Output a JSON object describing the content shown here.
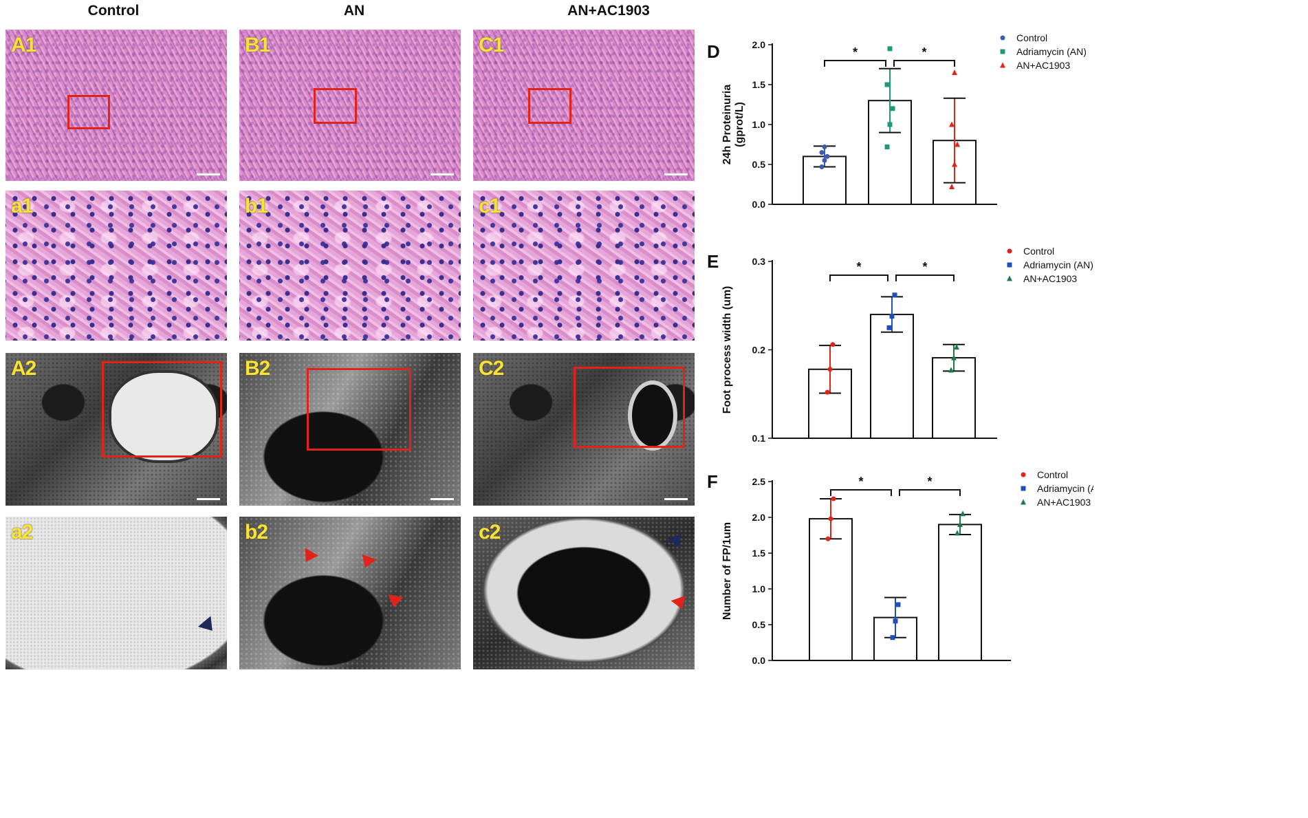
{
  "column_headers": [
    "Control",
    "AN",
    "AN+AC1903"
  ],
  "panel_labels": {
    "row1": [
      "A1",
      "B1",
      "C1"
    ],
    "row2": [
      "a1",
      "b1",
      "c1"
    ],
    "row3": [
      "A2",
      "B2",
      "C2"
    ],
    "row4": [
      "a2",
      "b2",
      "c2"
    ]
  },
  "colors": {
    "roi_box": "#e2231a",
    "panel_label": "#f6e23a",
    "arrow_red": "#e2231a",
    "arrow_navy": "#1f2a5c"
  },
  "chart_data": [
    {
      "panel": "D",
      "type": "bar",
      "categories": [
        "Control",
        "Adriamycin (AN)",
        "AN+AC1903"
      ],
      "ylabel": "24h  Proteinuria\n(gprot/L)",
      "ylim": [
        0,
        2.0
      ],
      "yticks": [
        "0.0",
        "0.5",
        "1.0",
        "1.5",
        "2.0"
      ],
      "means": [
        0.6,
        1.3,
        0.8
      ],
      "sd": [
        0.13,
        0.4,
        0.53
      ],
      "points": [
        [
          0.47,
          0.55,
          0.6,
          0.65,
          0.72
        ],
        [
          0.72,
          1.0,
          1.2,
          1.5,
          1.95
        ],
        [
          0.22,
          0.5,
          0.75,
          1.0,
          1.65
        ]
      ],
      "legend": [
        "Control",
        "Adriamycin (AN)",
        "AN+AC1903"
      ],
      "legend_colors": [
        "#3b5bab",
        "#1f9a77",
        "#e2231a"
      ],
      "markers": [
        "circle",
        "square",
        "triangle"
      ],
      "significance": [
        "*",
        "*"
      ]
    },
    {
      "panel": "E",
      "type": "bar",
      "categories": [
        "Control",
        "Adriamycin (AN)",
        "AN+AC1903"
      ],
      "ylabel": "Foot process width (um)",
      "ylim": [
        0.1,
        0.3
      ],
      "yticks": [
        "0.1",
        "0.2",
        "0.3"
      ],
      "means": [
        0.178,
        0.24,
        0.191
      ],
      "sd": [
        0.027,
        0.02,
        0.015
      ],
      "points": [
        [
          0.152,
          0.178,
          0.206
        ],
        [
          0.225,
          0.238,
          0.262
        ],
        [
          0.177,
          0.191,
          0.203
        ]
      ],
      "legend": [
        "Control",
        "Adriamycin (AN)",
        "AN+AC1903"
      ],
      "legend_colors": [
        "#e2231a",
        "#1f4fb8",
        "#1f7a4a"
      ],
      "markers": [
        "circle",
        "square",
        "triangle"
      ],
      "significance": [
        "*",
        "*"
      ]
    },
    {
      "panel": "F",
      "type": "bar",
      "categories": [
        "Control",
        "Adriamycin (AN)",
        "AN+AC1903"
      ],
      "ylabel": "Number of FP/1um",
      "ylim": [
        0,
        2.5
      ],
      "yticks": [
        "0.0",
        "0.5",
        "1.0",
        "1.5",
        "2.0",
        "2.5"
      ],
      "means": [
        1.98,
        0.6,
        1.9
      ],
      "sd": [
        0.28,
        0.28,
        0.14
      ],
      "points": [
        [
          1.7,
          1.98,
          2.26
        ],
        [
          0.32,
          0.55,
          0.78
        ],
        [
          1.78,
          1.9,
          2.05
        ]
      ],
      "legend": [
        "Control",
        "Adriamycin (AN)",
        "AN+AC1903"
      ],
      "legend_colors": [
        "#e2231a",
        "#1f4fb8",
        "#1f7a4a"
      ],
      "markers": [
        "circle",
        "square",
        "triangle"
      ],
      "significance": [
        "*",
        "*"
      ]
    }
  ]
}
